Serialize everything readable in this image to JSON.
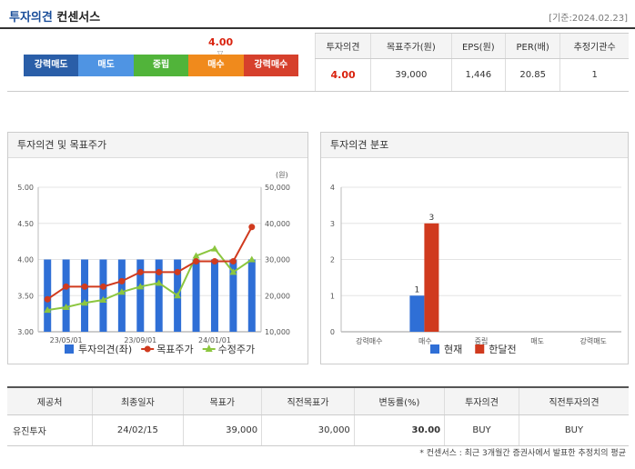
{
  "header": {
    "title_a": "투자의견",
    "title_b": "컨센서스",
    "date": "[기준:2024.02.23]"
  },
  "opinion_scale": {
    "value": "4.00",
    "marker": "▽",
    "levels": [
      {
        "label": "강력매도",
        "color": "#2a5ea8"
      },
      {
        "label": "매도",
        "color": "#4f94e3"
      },
      {
        "label": "중립",
        "color": "#51b43a"
      },
      {
        "label": "매수",
        "color": "#f08a1c"
      },
      {
        "label": "강력매수",
        "color": "#d6402c"
      }
    ]
  },
  "summary": {
    "headers": [
      "투자의견",
      "목표주가(원)",
      "EPS(원)",
      "PER(배)",
      "추정기관수"
    ],
    "values": [
      "4.00",
      "39,000",
      "1,446",
      "20.85",
      "1"
    ]
  },
  "left_panel": {
    "title": "투자의견 및 목표주가"
  },
  "right_panel": {
    "title": "투자의견 분포"
  },
  "chart_data": [
    {
      "type": "bar+line",
      "unit_right": "(원)",
      "y_left_ticks": [
        "5.00",
        "4.50",
        "4.00",
        "3.50",
        "3.00"
      ],
      "y_left_range": [
        3.0,
        5.0
      ],
      "y_right_ticks": [
        "50,000",
        "40,000",
        "30,000",
        "20,000",
        "10,000"
      ],
      "y_right_range": [
        10000,
        50000
      ],
      "x_tick_labels": [
        "23/05/01",
        "23/09/01",
        "24/01/01"
      ],
      "bar_color": "#2f6fd6",
      "opinion_values": [
        4.0,
        4.0,
        4.0,
        4.0,
        4.0,
        4.0,
        4.0,
        4.0,
        4.0,
        4.0,
        4.0,
        4.0
      ],
      "target_price": [
        19000,
        22500,
        22500,
        22500,
        24000,
        26500,
        26500,
        26500,
        29500,
        29500,
        29500,
        39000
      ],
      "adjusted_price": [
        16000,
        16800,
        18000,
        18800,
        21000,
        22500,
        23500,
        20000,
        31000,
        33000,
        26500,
        30000
      ],
      "target_color": "#d03a1e",
      "adjusted_color": "#8cc63f",
      "legend": [
        {
          "label": "투자의견(좌)",
          "color": "#2f6fd6",
          "shape": "square"
        },
        {
          "label": "목표주가",
          "color": "#d03a1e",
          "shape": "circle"
        },
        {
          "label": "수정주가",
          "color": "#8cc63f",
          "shape": "triangle"
        }
      ]
    },
    {
      "type": "bar",
      "categories": [
        "강력매수",
        "매수",
        "중립",
        "매도",
        "강력매도"
      ],
      "y_ticks": [
        "4",
        "3",
        "2",
        "1",
        "0"
      ],
      "ylim": [
        0,
        4
      ],
      "series": [
        {
          "name": "현재",
          "color": "#2f6fd6",
          "values": [
            0,
            1,
            0,
            0,
            0
          ]
        },
        {
          "name": "한달전",
          "color": "#d03a1e",
          "values": [
            0,
            3,
            0,
            0,
            0
          ]
        }
      ]
    }
  ],
  "details": {
    "headers": [
      "제공처",
      "최종일자",
      "목표가",
      "직전목표가",
      "변동률(%)",
      "투자의견",
      "직전투자의견"
    ],
    "rows": [
      [
        "유진투자",
        "24/02/15",
        "39,000",
        "30,000",
        "30.00",
        "BUY",
        "BUY"
      ]
    ]
  },
  "footnote": "* 컨센서스 : 최근 3개월간 증권사에서 발표한 추정치의 평균"
}
